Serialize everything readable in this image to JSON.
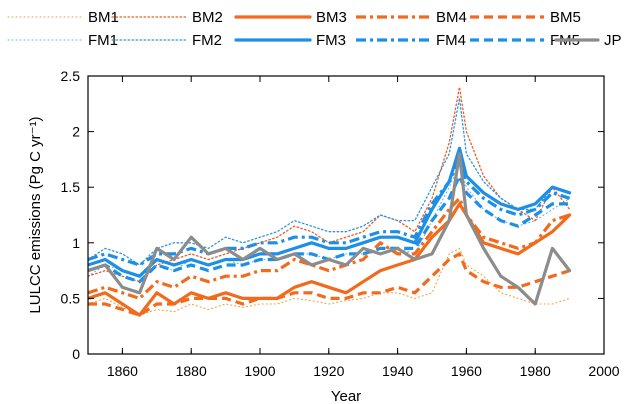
{
  "chart_data": {
    "type": "line",
    "xlabel": "Year",
    "ylabel": "LULCC emissions (Pg C yr⁻¹)",
    "xlim": [
      1850,
      2000
    ],
    "ylim": [
      0,
      2.5
    ],
    "xticks": [
      1860,
      1880,
      1900,
      1920,
      1940,
      1960,
      1980,
      2000
    ],
    "yticks": [
      0,
      0.5,
      1,
      1.5,
      2,
      2.5
    ],
    "ytick_labels": [
      "0",
      "0.5",
      "1",
      "1.5",
      "2",
      "2.5"
    ],
    "grid": false,
    "legend_position": "top",
    "x": [
      1850,
      1855,
      1860,
      1865,
      1870,
      1875,
      1880,
      1885,
      1890,
      1895,
      1900,
      1905,
      1910,
      1915,
      1920,
      1925,
      1930,
      1935,
      1940,
      1945,
      1950,
      1955,
      1958,
      1960,
      1965,
      1970,
      1975,
      1980,
      1985,
      1990
    ],
    "series": [
      {
        "name": "BM1",
        "color": "#f2a33a",
        "style": "dotted-light",
        "values": [
          0.45,
          0.5,
          0.42,
          0.35,
          0.4,
          0.38,
          0.45,
          0.4,
          0.45,
          0.42,
          0.45,
          0.45,
          0.5,
          0.48,
          0.45,
          0.48,
          0.5,
          0.55,
          0.55,
          0.5,
          0.55,
          0.9,
          0.95,
          0.8,
          0.7,
          0.55,
          0.5,
          0.45,
          0.45,
          0.5
        ]
      },
      {
        "name": "BM2",
        "color": "#ef5b22",
        "style": "dotted",
        "values": [
          0.7,
          0.75,
          0.7,
          0.65,
          0.8,
          0.85,
          0.9,
          0.85,
          0.9,
          0.95,
          1.0,
          1.05,
          1.15,
          1.1,
          1.0,
          1.05,
          1.1,
          1.25,
          1.2,
          1.1,
          1.4,
          1.9,
          2.4,
          2.0,
          1.6,
          1.4,
          1.3,
          1.2,
          1.5,
          1.3
        ]
      },
      {
        "name": "BM3",
        "color": "#f26a1b",
        "style": "solid",
        "values": [
          0.5,
          0.55,
          0.45,
          0.35,
          0.55,
          0.45,
          0.55,
          0.5,
          0.55,
          0.5,
          0.5,
          0.5,
          0.6,
          0.65,
          0.6,
          0.55,
          0.65,
          0.75,
          0.8,
          0.85,
          1.05,
          1.2,
          1.35,
          1.25,
          1.0,
          0.95,
          0.9,
          1.0,
          1.1,
          1.25
        ]
      },
      {
        "name": "BM4",
        "color": "#f26a1b",
        "style": "dashdot",
        "values": [
          0.55,
          0.6,
          0.55,
          0.5,
          0.65,
          0.6,
          0.7,
          0.65,
          0.7,
          0.7,
          0.75,
          0.75,
          0.85,
          0.8,
          0.75,
          0.8,
          0.85,
          1.0,
          0.9,
          0.9,
          1.1,
          1.3,
          1.4,
          1.25,
          1.05,
          1.0,
          0.95,
          1.0,
          1.2,
          1.25
        ]
      },
      {
        "name": "BM5",
        "color": "#f26a1b",
        "style": "dashed",
        "values": [
          0.45,
          0.45,
          0.4,
          0.35,
          0.45,
          0.45,
          0.5,
          0.5,
          0.5,
          0.45,
          0.5,
          0.5,
          0.55,
          0.55,
          0.5,
          0.5,
          0.55,
          0.55,
          0.6,
          0.55,
          0.7,
          0.85,
          0.9,
          0.75,
          0.65,
          0.6,
          0.6,
          0.65,
          0.7,
          0.75
        ]
      },
      {
        "name": "FM1",
        "color": "#5fb3ef",
        "style": "dotted-light",
        "values": [
          0.7,
          0.8,
          0.75,
          0.7,
          0.8,
          0.75,
          0.85,
          0.8,
          0.85,
          0.8,
          0.85,
          0.85,
          0.9,
          0.9,
          0.85,
          0.9,
          0.9,
          0.95,
          0.95,
          0.9,
          1.2,
          1.5,
          1.7,
          1.5,
          1.3,
          1.2,
          1.15,
          1.2,
          1.3,
          1.4
        ]
      },
      {
        "name": "FM2",
        "color": "#2c95e8",
        "style": "dotted",
        "values": [
          0.85,
          0.95,
          0.9,
          0.8,
          0.95,
          1.0,
          1.0,
          0.95,
          1.05,
          1.0,
          1.05,
          1.1,
          1.2,
          1.15,
          1.1,
          1.1,
          1.15,
          1.25,
          1.2,
          1.2,
          1.5,
          1.8,
          2.3,
          1.8,
          1.55,
          1.4,
          1.3,
          1.3,
          1.5,
          1.45
        ]
      },
      {
        "name": "FM3",
        "color": "#1d8fe6",
        "style": "solid",
        "values": [
          0.8,
          0.85,
          0.75,
          0.7,
          0.85,
          0.8,
          0.85,
          0.8,
          0.85,
          0.85,
          0.9,
          0.9,
          0.95,
          1.0,
          0.95,
          0.95,
          1.0,
          1.05,
          1.05,
          1.0,
          1.3,
          1.55,
          1.85,
          1.6,
          1.45,
          1.35,
          1.3,
          1.35,
          1.5,
          1.45
        ]
      },
      {
        "name": "FM4",
        "color": "#1d8fe6",
        "style": "dashdot",
        "values": [
          0.85,
          0.9,
          0.85,
          0.8,
          0.9,
          0.9,
          0.95,
          0.9,
          0.95,
          0.95,
          1.0,
          1.0,
          1.05,
          1.05,
          1.0,
          1.0,
          1.05,
          1.1,
          1.1,
          1.05,
          1.35,
          1.55,
          1.75,
          1.55,
          1.4,
          1.3,
          1.25,
          1.3,
          1.45,
          1.4
        ]
      },
      {
        "name": "FM5",
        "color": "#1d8fe6",
        "style": "dashed",
        "values": [
          0.75,
          0.8,
          0.7,
          0.65,
          0.8,
          0.75,
          0.8,
          0.75,
          0.8,
          0.8,
          0.85,
          0.85,
          0.9,
          0.9,
          0.85,
          0.9,
          0.9,
          0.95,
          0.95,
          0.95,
          1.2,
          1.4,
          1.6,
          1.45,
          1.3,
          1.2,
          1.15,
          1.25,
          1.35,
          1.35
        ]
      },
      {
        "name": "JP",
        "color": "#8c8c8c",
        "style": "solid",
        "values": [
          0.75,
          0.8,
          0.6,
          0.55,
          0.95,
          0.85,
          1.05,
          0.9,
          0.95,
          0.85,
          0.95,
          0.85,
          0.9,
          0.8,
          0.85,
          0.8,
          0.95,
          0.9,
          0.95,
          0.85,
          0.9,
          1.2,
          1.8,
          1.25,
          0.95,
          0.7,
          0.6,
          0.45,
          0.95,
          0.75
        ]
      }
    ]
  }
}
